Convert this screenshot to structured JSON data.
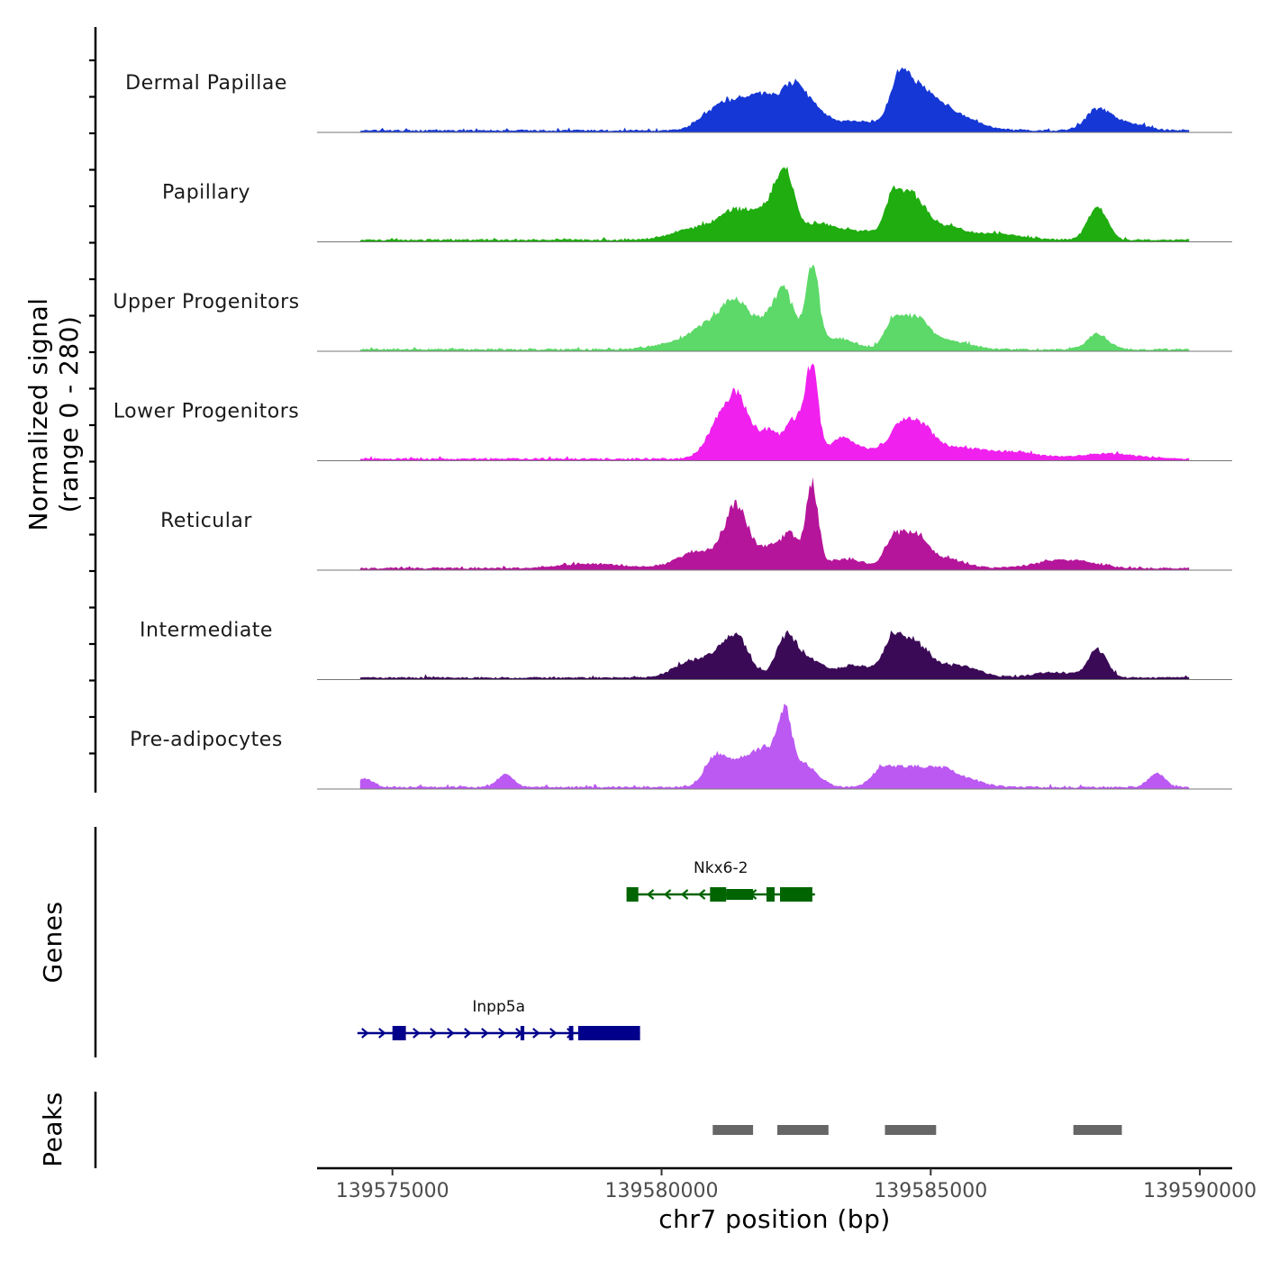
{
  "chart_data": {
    "type": "area",
    "chromosome": "chr7",
    "xlabel": "chr7 position (bp)",
    "ylabel_line1": "Normalized signal",
    "ylabel_line2": "(range 0 - 280)",
    "y_range": [
      0,
      280
    ],
    "xlim": [
      139573600,
      139590600
    ],
    "x_ticks": [
      139575000,
      139580000,
      139585000,
      139590000
    ],
    "x_tick_labels": [
      "139575000",
      "139580000",
      "139585000",
      "139590000"
    ],
    "signal_extent": [
      139574400,
      139589800
    ],
    "tracks": [
      {
        "name": "Dermal Papillae",
        "color": "#1537d6",
        "peaks": [
          [
            139581400,
            0.25,
            350
          ],
          [
            139581850,
            0.26,
            220
          ],
          [
            139581000,
            0.16,
            300
          ],
          [
            139582400,
            0.42,
            260
          ],
          [
            139582750,
            0.18,
            300
          ],
          [
            139583700,
            0.1,
            600
          ],
          [
            139584400,
            0.44,
            160
          ],
          [
            139584700,
            0.38,
            240
          ],
          [
            139585100,
            0.22,
            300
          ],
          [
            139585600,
            0.12,
            380
          ],
          [
            139588100,
            0.22,
            220
          ],
          [
            139588600,
            0.09,
            350
          ]
        ]
      },
      {
        "name": "Papillary",
        "color": "#1fad10",
        "peaks": [
          [
            139581400,
            0.3,
            300
          ],
          [
            139580700,
            0.14,
            450
          ],
          [
            139582300,
            0.62,
            170
          ],
          [
            139582000,
            0.32,
            250
          ],
          [
            139582900,
            0.18,
            300
          ],
          [
            139584300,
            0.4,
            150
          ],
          [
            139584650,
            0.45,
            230
          ],
          [
            139585200,
            0.15,
            350
          ],
          [
            139588100,
            0.38,
            180
          ],
          [
            139583700,
            0.1,
            400
          ],
          [
            139586200,
            0.07,
            500
          ]
        ]
      },
      {
        "name": "Upper Progenitors",
        "color": "#5cd968",
        "peaks": [
          [
            139581400,
            0.48,
            260
          ],
          [
            139580900,
            0.25,
            300
          ],
          [
            139582300,
            0.55,
            180
          ],
          [
            139582000,
            0.28,
            250
          ],
          [
            139582800,
            0.93,
            120
          ],
          [
            139583300,
            0.12,
            300
          ],
          [
            139584300,
            0.28,
            160
          ],
          [
            139584700,
            0.34,
            240
          ],
          [
            139585300,
            0.1,
            400
          ],
          [
            139588100,
            0.17,
            200
          ],
          [
            139580300,
            0.08,
            400
          ]
        ]
      },
      {
        "name": "Lower Progenitors",
        "color": "#f020ee",
        "peaks": [
          [
            139581400,
            0.68,
            230
          ],
          [
            139581000,
            0.28,
            220
          ],
          [
            139582000,
            0.3,
            200
          ],
          [
            139582500,
            0.45,
            180
          ],
          [
            139582800,
            1.0,
            110
          ],
          [
            139583300,
            0.18,
            200
          ],
          [
            139583700,
            0.12,
            350
          ],
          [
            139584400,
            0.28,
            200
          ],
          [
            139584800,
            0.36,
            250
          ],
          [
            139585500,
            0.12,
            400
          ],
          [
            139586500,
            0.08,
            500
          ],
          [
            139588300,
            0.06,
            500
          ]
        ]
      },
      {
        "name": "Reticular",
        "color": "#b5159b",
        "peaks": [
          [
            139581400,
            0.68,
            220
          ],
          [
            139580700,
            0.2,
            380
          ],
          [
            139582000,
            0.22,
            200
          ],
          [
            139582400,
            0.36,
            170
          ],
          [
            139582800,
            0.92,
            110
          ],
          [
            139583400,
            0.1,
            350
          ],
          [
            139584300,
            0.3,
            160
          ],
          [
            139584700,
            0.38,
            230
          ],
          [
            139585300,
            0.1,
            350
          ],
          [
            139587500,
            0.1,
            500
          ],
          [
            139578700,
            0.05,
            600
          ]
        ]
      },
      {
        "name": "Intermediate",
        "color": "#3b0a57",
        "peaks": [
          [
            139581400,
            0.44,
            230
          ],
          [
            139580500,
            0.16,
            300
          ],
          [
            139581000,
            0.18,
            250
          ],
          [
            139582300,
            0.42,
            180
          ],
          [
            139582700,
            0.22,
            250
          ],
          [
            139583600,
            0.14,
            350
          ],
          [
            139584300,
            0.36,
            180
          ],
          [
            139584700,
            0.38,
            260
          ],
          [
            139585500,
            0.14,
            380
          ],
          [
            139588100,
            0.3,
            180
          ],
          [
            139587300,
            0.06,
            400
          ]
        ]
      },
      {
        "name": "Pre-adipocytes",
        "color": "#bc59f2",
        "peaks": [
          [
            139581000,
            0.3,
            200
          ],
          [
            139581500,
            0.26,
            300
          ],
          [
            139582000,
            0.38,
            250
          ],
          [
            139582300,
            0.64,
            120
          ],
          [
            139582650,
            0.24,
            250
          ],
          [
            139584100,
            0.18,
            200
          ],
          [
            139584600,
            0.22,
            300
          ],
          [
            139585200,
            0.18,
            250
          ],
          [
            139585700,
            0.08,
            300
          ],
          [
            139589200,
            0.16,
            150
          ],
          [
            139577100,
            0.14,
            150
          ],
          [
            139574500,
            0.1,
            150
          ]
        ]
      }
    ],
    "genes": [
      {
        "name": "Nkx6-2",
        "color": "#006400",
        "strand": "-",
        "start": 139579350,
        "end": 139582850,
        "exons": [
          [
            139579350,
            139579570
          ],
          [
            139580900,
            139581200
          ],
          [
            139581200,
            139581700
          ],
          [
            139581950,
            139582100
          ],
          [
            139582200,
            139582800
          ]
        ],
        "thin_exons": [
          [
            139581200,
            139581700
          ]
        ]
      },
      {
        "name": "Inpp5a",
        "color": "#00008b",
        "strand": "+",
        "start": 139574350,
        "end": 139579600,
        "exons": [
          [
            139575000,
            139575250
          ],
          [
            139577380,
            139577450
          ],
          [
            139578280,
            139578360
          ],
          [
            139578450,
            139579600
          ]
        ],
        "thin_exons": []
      }
    ],
    "peaks_track": {
      "label": "Peaks",
      "color": "#666666",
      "regions": [
        [
          139580950,
          139581700
        ],
        [
          139582150,
          139583100
        ],
        [
          139584150,
          139585100
        ],
        [
          139587650,
          139588550
        ]
      ]
    },
    "genes_track_label": "Genes"
  }
}
